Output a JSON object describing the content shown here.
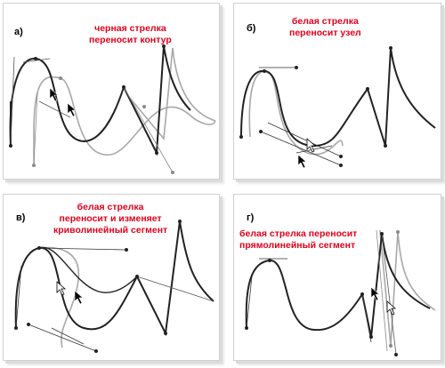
{
  "panels": [
    {
      "letter": "а)",
      "caption": [
        "черная стрелка",
        "переносит контур"
      ]
    },
    {
      "letter": "б)",
      "caption": [
        "белая стрелка",
        "переносит узел"
      ]
    },
    {
      "letter": "в)",
      "caption": [
        "белая стрелка",
        "переносит и изменяет",
        "криволинейный сегмент"
      ]
    },
    {
      "letter": "г)",
      "caption": [
        "белая стрелка переносит",
        "прямолинейный сегмент"
      ]
    }
  ],
  "colors": {
    "caption": "#e0001b",
    "path": "#222222",
    "path_ghost": "#a8a8a8",
    "handle": "#333333"
  },
  "icons": [
    "black-arrow-cursor-icon",
    "white-arrow-cursor-icon"
  ]
}
